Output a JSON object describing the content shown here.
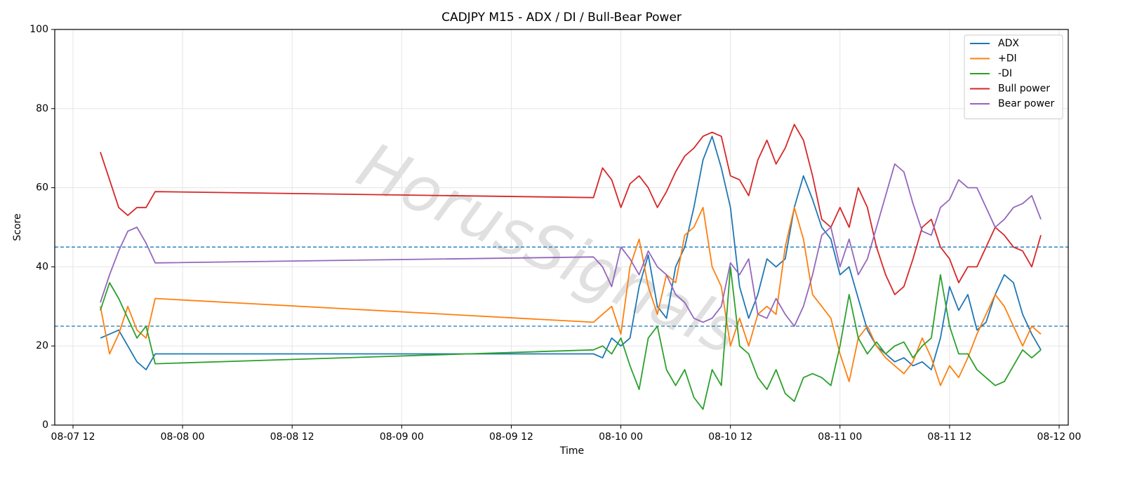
{
  "chart_data": {
    "type": "line",
    "title": "CADJPY M15 - ADX / DI / Bull-Bear Power",
    "x_label": "Time",
    "y_label": "Score",
    "watermark": "HorusSignals",
    "x": [
      "08-07 15",
      "08-07 16",
      "08-07 17",
      "08-07 18",
      "08-07 19",
      "08-07 20",
      "08-07 21",
      "08-09 21",
      "08-09 22",
      "08-09 23",
      "08-10 00",
      "08-10 01",
      "08-10 02",
      "08-10 03",
      "08-10 04",
      "08-10 05",
      "08-10 06",
      "08-10 07",
      "08-10 08",
      "08-10 09",
      "08-10 10",
      "08-10 11",
      "08-10 12",
      "08-10 13",
      "08-10 14",
      "08-10 15",
      "08-10 16",
      "08-10 17",
      "08-10 18",
      "08-10 19",
      "08-10 20",
      "08-10 21",
      "08-10 22",
      "08-10 23",
      "08-11 00",
      "08-11 01",
      "08-11 02",
      "08-11 03",
      "08-11 04",
      "08-11 05",
      "08-11 06",
      "08-11 07",
      "08-11 08",
      "08-11 09",
      "08-11 10",
      "08-11 11",
      "08-11 12",
      "08-11 13",
      "08-11 14",
      "08-11 15",
      "08-11 16",
      "08-11 17",
      "08-11 18",
      "08-11 19",
      "08-11 20",
      "08-11 21",
      "08-11 22"
    ],
    "series": [
      {
        "name": "ADX",
        "color": "#1f77b4",
        "values": [
          22,
          23,
          24,
          20,
          16,
          14,
          18,
          18,
          17,
          22,
          20,
          22,
          35,
          43,
          30,
          27,
          40,
          45,
          55,
          67,
          73,
          65,
          55,
          35,
          27,
          33,
          42,
          40,
          42,
          55,
          63,
          57,
          50,
          47,
          38,
          40,
          32,
          24,
          20,
          18,
          16,
          17,
          15,
          16,
          14,
          22,
          35,
          29,
          33,
          24,
          26,
          33,
          38,
          36,
          28,
          23,
          19
        ]
      },
      {
        "name": "+DI",
        "color": "#ff7f0e",
        "values": [
          30,
          18,
          23,
          30,
          24,
          22,
          32,
          26,
          28,
          30,
          23,
          40,
          47,
          35,
          28,
          38,
          36,
          48,
          50,
          55,
          40,
          35,
          20,
          27,
          20,
          28,
          30,
          28,
          45,
          55,
          47,
          33,
          30,
          27,
          18,
          11,
          22,
          25,
          20,
          17,
          15,
          13,
          16,
          22,
          17,
          10,
          15,
          12,
          17,
          23,
          28,
          33,
          30,
          25,
          20,
          25,
          23
        ]
      },
      {
        "name": "-DI",
        "color": "#2ca02c",
        "values": [
          29,
          36,
          32,
          27,
          22,
          25,
          15.5,
          19,
          20,
          18,
          22,
          15,
          9,
          22,
          25,
          14,
          10,
          14,
          7,
          4,
          14,
          10,
          40,
          20,
          18,
          12,
          9,
          14,
          8,
          6,
          12,
          13,
          12,
          10,
          20,
          33,
          22,
          18,
          21,
          18,
          20,
          21,
          17,
          20,
          22,
          38,
          25,
          18,
          18,
          14,
          12,
          10,
          11,
          15,
          19,
          17,
          19
        ]
      },
      {
        "name": "Bull power",
        "color": "#d62728",
        "values": [
          69,
          62,
          55,
          53,
          55,
          55,
          59,
          57.5,
          65,
          62,
          55,
          61,
          63,
          60,
          55,
          59,
          64,
          68,
          70,
          73,
          74,
          73,
          63,
          62,
          58,
          67,
          72,
          66,
          70,
          76,
          72,
          63,
          52,
          50,
          55,
          50,
          60,
          55,
          45,
          38,
          33,
          35,
          42,
          50,
          52,
          45,
          42,
          36,
          40,
          40,
          45,
          50,
          48,
          45,
          44,
          40,
          48
        ]
      },
      {
        "name": "Bear power",
        "color": "#9467bd",
        "values": [
          31,
          38,
          44,
          49,
          50,
          46,
          41,
          42.5,
          40,
          35,
          45,
          42,
          38,
          44,
          40,
          38,
          33,
          31,
          27,
          26,
          27,
          30,
          41,
          38,
          42,
          28,
          27,
          32,
          28,
          25,
          30,
          38,
          48,
          50,
          40,
          47,
          38,
          42,
          50,
          58,
          66,
          64,
          56,
          49,
          48,
          55,
          57,
          62,
          60,
          60,
          55,
          50,
          52,
          55,
          56,
          58,
          52
        ]
      }
    ],
    "hlines": [
      45,
      25
    ],
    "hline_color": "#1f77b4",
    "xlim": [
      "08-07 10",
      "08-12 01"
    ],
    "xticks": [
      "08-07 12",
      "08-08 00",
      "08-08 12",
      "08-09 00",
      "08-09 12",
      "08-10 00",
      "08-10 12",
      "08-11 00",
      "08-11 12",
      "08-12 00"
    ],
    "ylim": [
      0,
      100
    ],
    "yticks": [
      0,
      20,
      40,
      60,
      80,
      100
    ],
    "grid": true,
    "legend": "upper right"
  }
}
